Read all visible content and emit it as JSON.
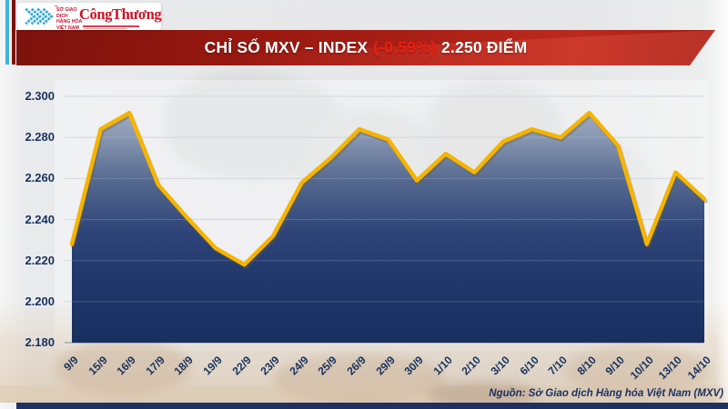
{
  "header": {
    "mxv_logo": {
      "text_lines": [
        "SỞ GIAO DỊCH",
        "HÀNG HÓA",
        "VIỆT NAM"
      ],
      "trademark": "™",
      "logo_color": "#2fa8df",
      "text_color": "#c41230"
    },
    "congthuong_logo": "CôngThương",
    "banner": {
      "title_prefix": "CHỈ SỐ MXV – INDEX",
      "change_pct": "(-0,59%)",
      "title_suffix": "2.250 ĐIỂM",
      "accent_red": "#ef1e10",
      "banner_dark": "#7d120d",
      "banner_bright": "#bc2a1f"
    }
  },
  "chart_data": {
    "type": "area",
    "title": "CHỈ SỐ MXV – INDEX (-0,59%) 2.250 ĐIỂM",
    "x": [
      "9/9",
      "15/9",
      "16/9",
      "17/9",
      "18/9",
      "19/9",
      "22/9",
      "23/9",
      "24/9",
      "25/9",
      "26/9",
      "29/9",
      "30/9",
      "1/10",
      "2/10",
      "3/10",
      "6/10",
      "7/10",
      "8/10",
      "9/10",
      "10/10",
      "13/10",
      "14/10"
    ],
    "values": [
      2228,
      2284,
      2292,
      2257,
      2241,
      2226,
      2218,
      2232,
      2258,
      2270,
      2284,
      2279,
      2259,
      2272,
      2263,
      2278,
      2284,
      2280,
      2292,
      2276,
      2228,
      2263,
      2250
    ],
    "y_ticks": [
      "2.300",
      "2.280",
      "2.260",
      "2.240",
      "2.220",
      "2.200",
      "2.180"
    ],
    "ylim": [
      2180,
      2300
    ],
    "xlabel": "",
    "ylabel": "",
    "grid": true,
    "legend": "none",
    "line_color": "#f6b400",
    "fill_top_color": "#a8b1c6",
    "fill_bottom_color": "#182f60",
    "label_color": "#17325f",
    "value_format": "vi-thousand-dot"
  },
  "footer": {
    "source": "Nguồn: Sở Giao dịch Hàng hóa Việt Nam (MXV)"
  }
}
